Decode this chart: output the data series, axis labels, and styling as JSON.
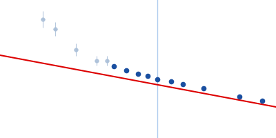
{
  "fig_width": 4.0,
  "fig_height": 2.0,
  "dpi": 100,
  "background_color": "#ffffff",
  "xlim": [
    0,
    400
  ],
  "ylim": [
    200,
    0
  ],
  "excluded_points": {
    "x": [
      62,
      80,
      110,
      140,
      155
    ],
    "y": [
      28,
      42,
      72,
      88,
      88
    ],
    "xerr": [
      3,
      3,
      3,
      3,
      3
    ],
    "yerr": [
      12,
      10,
      9,
      7,
      7
    ],
    "color": "#aabfd8",
    "marker_size": 3.5,
    "alpha": 0.85
  },
  "included_points": {
    "x": [
      165,
      183,
      200,
      214,
      228,
      248,
      265,
      295,
      347,
      380
    ],
    "y": [
      96,
      102,
      107,
      110,
      115,
      118,
      122,
      128,
      140,
      146
    ],
    "color": "#1a4fa0",
    "marker_size": 4.5
  },
  "fit_line": {
    "x": [
      0,
      400
    ],
    "y": [
      80,
      155
    ],
    "color": "#dd0000",
    "linewidth": 1.5
  },
  "vline": {
    "x": 228,
    "color": "#b0ccee",
    "linewidth": 1.0
  }
}
